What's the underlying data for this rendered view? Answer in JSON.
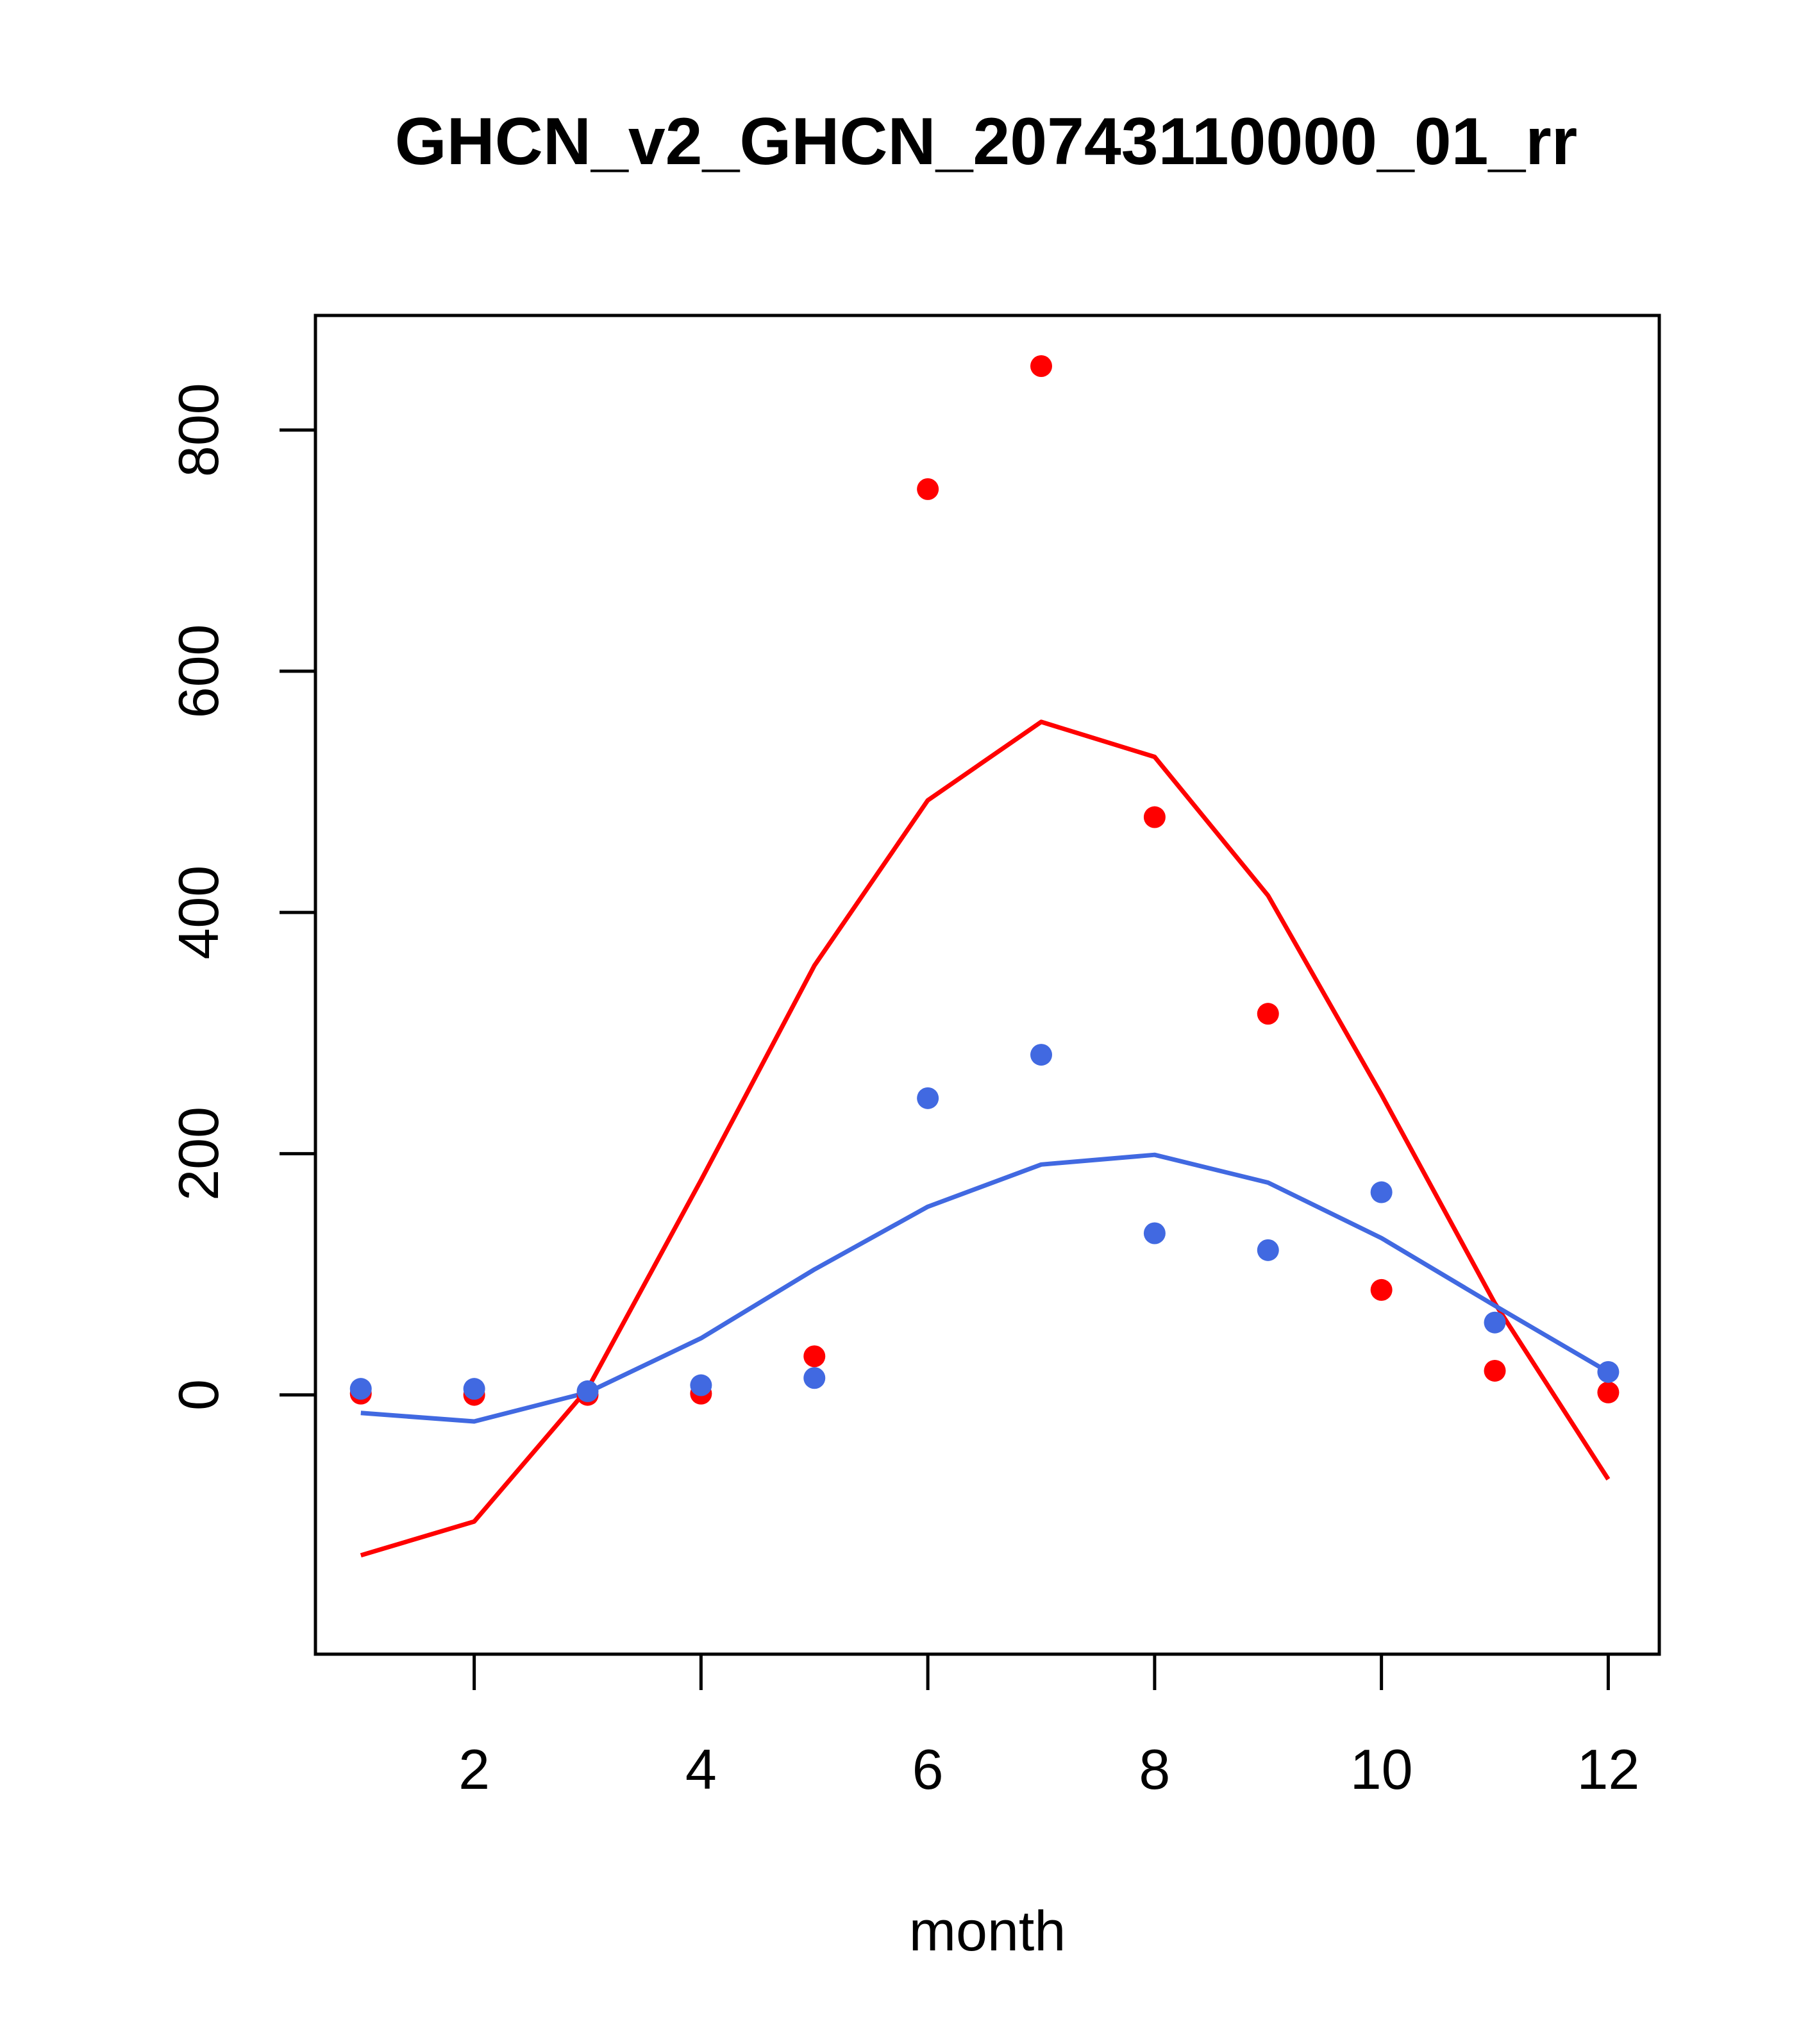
{
  "chart_data": {
    "type": "line",
    "title": "GHCN_v2_GHCN_20743110000_01_rr",
    "xlabel": "month",
    "ylabel": "",
    "xlim": [
      0.6,
      12.45
    ],
    "ylim": [
      -215,
      895
    ],
    "x_ticks": [
      2,
      4,
      6,
      8,
      10,
      12
    ],
    "y_ticks": [
      0,
      200,
      400,
      600,
      800
    ],
    "x_tick_labels": [
      "2",
      "4",
      "6",
      "8",
      "10",
      "12"
    ],
    "y_tick_labels": [
      "0",
      "200",
      "400",
      "600",
      "800"
    ],
    "grid": false,
    "legend": null,
    "x": [
      1,
      2,
      3,
      4,
      5,
      6,
      7,
      8,
      9,
      10,
      11,
      12
    ],
    "series": [
      {
        "name": "red line",
        "kind": "line",
        "color": "#ff0000",
        "values": [
          -133,
          -105,
          5,
          178,
          356,
          493,
          558,
          529,
          414,
          249,
          76,
          -70
        ]
      },
      {
        "name": "blue line",
        "kind": "line",
        "color": "#4169e1",
        "values": [
          -15,
          -22,
          2,
          47,
          104,
          156,
          191,
          199,
          176,
          130,
          74,
          19
        ]
      },
      {
        "name": "red points",
        "kind": "points",
        "color": "#ff0000",
        "values": [
          1,
          0,
          0,
          1,
          32,
          751,
          853,
          479,
          316,
          87,
          20,
          2
        ]
      },
      {
        "name": "blue points",
        "kind": "points",
        "color": "#4169e1",
        "values": [
          5,
          5,
          3,
          8,
          14,
          246,
          282,
          134,
          120,
          168,
          60,
          19
        ]
      }
    ]
  }
}
